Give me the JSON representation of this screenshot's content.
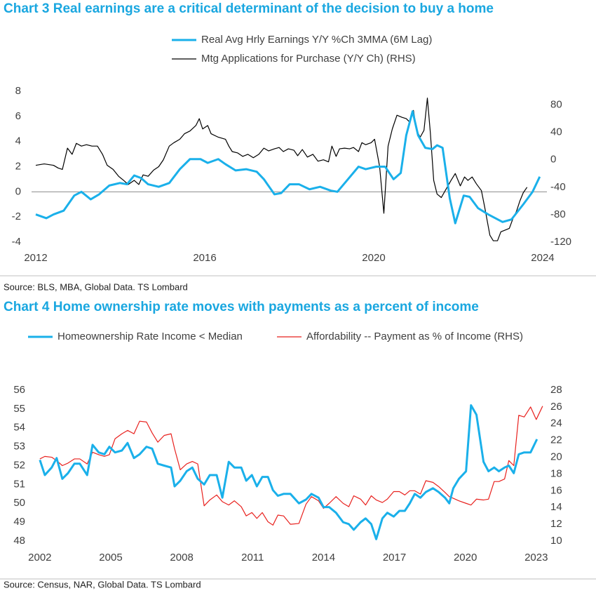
{
  "chart_data": [
    {
      "type": "line",
      "title": "Chart 3 Real earnings are a critical determinant of the decision to buy a home",
      "source": "Source: BLS, MBA, Global Data. TS Lombard",
      "xlim": [
        2011.9,
        2024.1
      ],
      "xticks": [
        2012,
        2016,
        2020,
        2024
      ],
      "ylim": [
        -4,
        8
      ],
      "yticks": [
        -4,
        -2,
        0,
        2,
        4,
        6,
        8
      ],
      "y2lim": [
        -120,
        100
      ],
      "y2ticks": [
        -120,
        -80,
        -40,
        0,
        40,
        80
      ],
      "hline": 0,
      "series": [
        {
          "name": "Real Avg Hrly Earnings Y/Y %Ch 3MMA (6M Lag)",
          "color": "#1ab0ea",
          "x": [
            2012.0,
            2012.25,
            2012.42,
            2012.66,
            2012.91,
            2013.08,
            2013.3,
            2013.5,
            2013.74,
            2013.99,
            2014.16,
            2014.33,
            2014.49,
            2014.66,
            2014.91,
            2015.16,
            2015.41,
            2015.65,
            2015.9,
            2016.07,
            2016.32,
            2016.49,
            2016.73,
            2016.98,
            2017.23,
            2017.4,
            2017.65,
            2017.81,
            2018.01,
            2018.23,
            2018.48,
            2018.73,
            2018.98,
            2019.14,
            2019.39,
            2019.64,
            2019.81,
            2020.06,
            2020.27,
            2020.47,
            2020.64,
            2020.77,
            2020.92,
            2021.05,
            2021.22,
            2021.39,
            2021.5,
            2021.63,
            2021.8,
            2021.93,
            2022.13,
            2022.27,
            2022.47,
            2022.71,
            2023.05,
            2023.26,
            2023.54,
            2023.76,
            2023.93
          ],
          "values": [
            -1.8,
            -2.1,
            -1.8,
            -1.5,
            -0.3,
            0,
            -0.6,
            -0.2,
            0.5,
            0.7,
            0.6,
            1.3,
            1.1,
            0.6,
            0.4,
            0.7,
            1.8,
            2.6,
            2.6,
            2.3,
            2.6,
            2.2,
            1.7,
            1.8,
            1.6,
            1.0,
            -0.2,
            -0.1,
            0.6,
            0.6,
            0.2,
            0.4,
            0.1,
            0.0,
            1.0,
            2.0,
            1.8,
            2.0,
            2.0,
            1.0,
            1.5,
            4.5,
            6.4,
            4.5,
            3.5,
            3.4,
            3.7,
            3.5,
            -0.5,
            -2.5,
            -0.3,
            -0.4,
            -1.3,
            -1.8,
            -2.4,
            -2.2,
            -1.0,
            0.0,
            1.2
          ]
        },
        {
          "name": "Mtg Applications for Purchase (Y/Y Ch) (RHS)",
          "color": "#000000",
          "axis": "y2",
          "x": [
            2012.0,
            2012.2,
            2012.42,
            2012.53,
            2012.63,
            2012.75,
            2012.86,
            2012.96,
            2013.08,
            2013.2,
            2013.33,
            2013.46,
            2013.58,
            2013.69,
            2013.83,
            2013.96,
            2014.08,
            2014.19,
            2014.33,
            2014.44,
            2014.54,
            2014.66,
            2014.79,
            2014.91,
            2015.02,
            2015.16,
            2015.27,
            2015.41,
            2015.52,
            2015.65,
            2015.79,
            2015.87,
            2015.95,
            2016.07,
            2016.15,
            2016.32,
            2016.49,
            2016.57,
            2016.65,
            2016.78,
            2016.9,
            2017.02,
            2017.15,
            2017.28,
            2017.4,
            2017.51,
            2017.65,
            2017.76,
            2017.86,
            2017.98,
            2018.11,
            2018.2,
            2018.31,
            2018.43,
            2018.56,
            2018.68,
            2018.81,
            2018.93,
            2019.01,
            2019.11,
            2019.19,
            2019.31,
            2019.43,
            2019.52,
            2019.64,
            2019.72,
            2019.81,
            2019.94,
            2020.02,
            2020.14,
            2020.24,
            2020.34,
            2020.44,
            2020.55,
            2020.67,
            2020.77,
            2020.85,
            2020.94,
            2021.02,
            2021.1,
            2021.19,
            2021.27,
            2021.34,
            2021.42,
            2021.5,
            2021.6,
            2021.72,
            2021.83,
            2021.93,
            2022.05,
            2022.15,
            2022.23,
            2022.33,
            2022.43,
            2022.55,
            2022.63,
            2022.75,
            2022.83,
            2022.93,
            2023.01,
            2023.13,
            2023.21,
            2023.3,
            2023.38,
            2023.46,
            2023.54,
            2023.63
          ],
          "values": [
            -8,
            -6,
            -8,
            -12,
            -14,
            17,
            8,
            24,
            20,
            22,
            20,
            20,
            8,
            -8,
            -14,
            -24,
            -30,
            -36,
            -30,
            -36,
            -22,
            -24,
            -15,
            -10,
            0,
            20,
            25,
            30,
            38,
            42,
            50,
            60,
            45,
            50,
            38,
            33,
            30,
            20,
            12,
            10,
            5,
            8,
            3,
            8,
            17,
            13,
            16,
            18,
            12,
            16,
            14,
            6,
            15,
            4,
            8,
            -2,
            0,
            -3,
            20,
            5,
            16,
            17,
            16,
            18,
            12,
            25,
            22,
            25,
            30,
            -10,
            -78,
            20,
            45,
            65,
            62,
            60,
            55,
            72,
            42,
            33,
            43,
            90,
            40,
            -30,
            -50,
            -55,
            -42,
            -30,
            -20,
            -38,
            -25,
            -30,
            -25,
            -35,
            -45,
            -70,
            -110,
            -118,
            -118,
            -105,
            -102,
            -100,
            -85,
            -75,
            -60,
            -48,
            -40
          ]
        }
      ]
    },
    {
      "type": "line",
      "title": "Chart 4 Home ownership rate moves with payments as a percent of income",
      "source": "Source: Census, NAR, Global Data. TS Lombard",
      "xlim": [
        2001.5,
        2023.6
      ],
      "xticks": [
        2002,
        2005,
        2008,
        2011,
        2014,
        2017,
        2020,
        2023
      ],
      "ylim": [
        48,
        56
      ],
      "yticks": [
        48,
        49,
        50,
        51,
        52,
        53,
        54,
        55,
        56
      ],
      "y2lim": [
        10,
        28
      ],
      "y2ticks": [
        10,
        12,
        14,
        16,
        18,
        20,
        22,
        24,
        26,
        28
      ],
      "series": [
        {
          "name": "Homeownership Rate Income < Median",
          "color": "#1ab0ea",
          "x": [
            2002.0,
            2002.21,
            2002.5,
            2002.71,
            2002.95,
            2003.19,
            2003.46,
            2003.69,
            2004.0,
            2004.23,
            2004.49,
            2004.73,
            2004.94,
            2005.18,
            2005.47,
            2005.71,
            2005.98,
            2006.22,
            2006.51,
            2006.75,
            2006.99,
            2007.26,
            2007.55,
            2007.7,
            2007.94,
            2008.21,
            2008.45,
            2008.68,
            2008.95,
            2009.19,
            2009.48,
            2009.72,
            2009.99,
            2010.23,
            2010.52,
            2010.73,
            2010.97,
            2011.18,
            2011.41,
            2011.65,
            2011.86,
            2012.07,
            2012.31,
            2012.6,
            2012.96,
            2013.26,
            2013.49,
            2013.79,
            2014.0,
            2014.24,
            2014.53,
            2014.83,
            2015.07,
            2015.28,
            2015.57,
            2015.78,
            2016.02,
            2016.23,
            2016.49,
            2016.7,
            2016.97,
            2017.21,
            2017.44,
            2017.65,
            2017.86,
            2018.1,
            2018.33,
            2018.63,
            2018.87,
            2019.14,
            2019.32,
            2019.49,
            2019.73,
            2020.03,
            2020.24,
            2020.47,
            2020.77,
            2020.98,
            2021.22,
            2021.42,
            2021.66,
            2021.84,
            2022.05,
            2022.26,
            2022.49,
            2022.76,
            2023.03
          ],
          "values": [
            52.3,
            51.5,
            51.9,
            52.4,
            51.3,
            51.6,
            52.1,
            52.1,
            51.5,
            53.1,
            52.7,
            52.6,
            53.0,
            52.7,
            52.8,
            53.2,
            52.4,
            52.6,
            53.0,
            52.9,
            52.1,
            52.0,
            51.9,
            50.9,
            51.2,
            51.7,
            51.9,
            51.3,
            51.0,
            51.5,
            51.5,
            50.3,
            52.2,
            51.9,
            51.9,
            51.2,
            51.5,
            50.9,
            51.4,
            51.4,
            50.7,
            50.4,
            50.5,
            50.5,
            50.0,
            50.2,
            50.5,
            50.3,
            49.8,
            49.8,
            49.5,
            49.0,
            48.9,
            48.6,
            49.0,
            49.2,
            48.9,
            48.1,
            49.2,
            49.5,
            49.3,
            49.6,
            49.6,
            50.0,
            50.5,
            50.3,
            50.6,
            50.8,
            50.6,
            50.3,
            50.0,
            50.8,
            51.3,
            51.7,
            55.2,
            54.7,
            52.2,
            51.7,
            51.9,
            51.7,
            51.9,
            52.0,
            51.6,
            52.6,
            52.7,
            52.7,
            53.4
          ]
        },
        {
          "name": "Affordability -- Payment as % of Income (RHS)",
          "color": "#e8211e",
          "axis": "y2",
          "x": [
            2002.0,
            2002.21,
            2002.5,
            2002.71,
            2002.95,
            2003.19,
            2003.46,
            2003.69,
            2004.0,
            2004.23,
            2004.49,
            2004.73,
            2004.94,
            2005.18,
            2005.47,
            2005.71,
            2005.98,
            2006.22,
            2006.51,
            2006.75,
            2006.99,
            2007.26,
            2007.55,
            2007.7,
            2007.94,
            2008.21,
            2008.45,
            2008.68,
            2008.95,
            2009.19,
            2009.48,
            2009.72,
            2009.99,
            2010.23,
            2010.52,
            2010.73,
            2010.97,
            2011.18,
            2011.41,
            2011.65,
            2011.86,
            2012.07,
            2012.31,
            2012.6,
            2012.96,
            2013.26,
            2013.49,
            2013.79,
            2014.0,
            2014.24,
            2014.53,
            2014.83,
            2015.07,
            2015.28,
            2015.57,
            2015.78,
            2016.02,
            2016.23,
            2016.49,
            2016.7,
            2016.97,
            2017.21,
            2017.44,
            2017.65,
            2017.86,
            2018.1,
            2018.33,
            2018.63,
            2018.87,
            2019.14,
            2019.32,
            2019.49,
            2019.73,
            2020.03,
            2020.24,
            2020.47,
            2020.77,
            2020.98,
            2021.22,
            2021.42,
            2021.66,
            2021.84,
            2022.05,
            2022.26,
            2022.49,
            2022.76,
            2023.0,
            2023.27
          ],
          "values": [
            19.8,
            20.1,
            20.0,
            19.6,
            19.0,
            19.3,
            19.8,
            19.8,
            19.2,
            20.6,
            20.3,
            20.1,
            20.3,
            22.2,
            22.8,
            23.2,
            22.8,
            24.3,
            24.2,
            22.9,
            21.8,
            22.6,
            22.8,
            21.0,
            18.5,
            19.2,
            19.5,
            19.2,
            14.2,
            14.9,
            15.5,
            14.7,
            14.3,
            14.8,
            14.1,
            13.0,
            13.4,
            12.7,
            13.4,
            12.3,
            11.9,
            13.1,
            13.0,
            12.0,
            12.1,
            14.4,
            15.3,
            14.8,
            13.9,
            14.5,
            15.3,
            14.5,
            14.1,
            15.4,
            15.0,
            14.3,
            15.4,
            14.9,
            14.6,
            15.0,
            15.9,
            15.9,
            15.5,
            16.0,
            16.0,
            15.6,
            17.2,
            17.0,
            16.5,
            15.8,
            15.3,
            15.1,
            14.8,
            14.5,
            14.3,
            15.0,
            14.9,
            15.0,
            17.1,
            17.1,
            17.4,
            19.6,
            19.0,
            25.0,
            24.8,
            26.0,
            24.5,
            26.1
          ]
        }
      ]
    }
  ]
}
